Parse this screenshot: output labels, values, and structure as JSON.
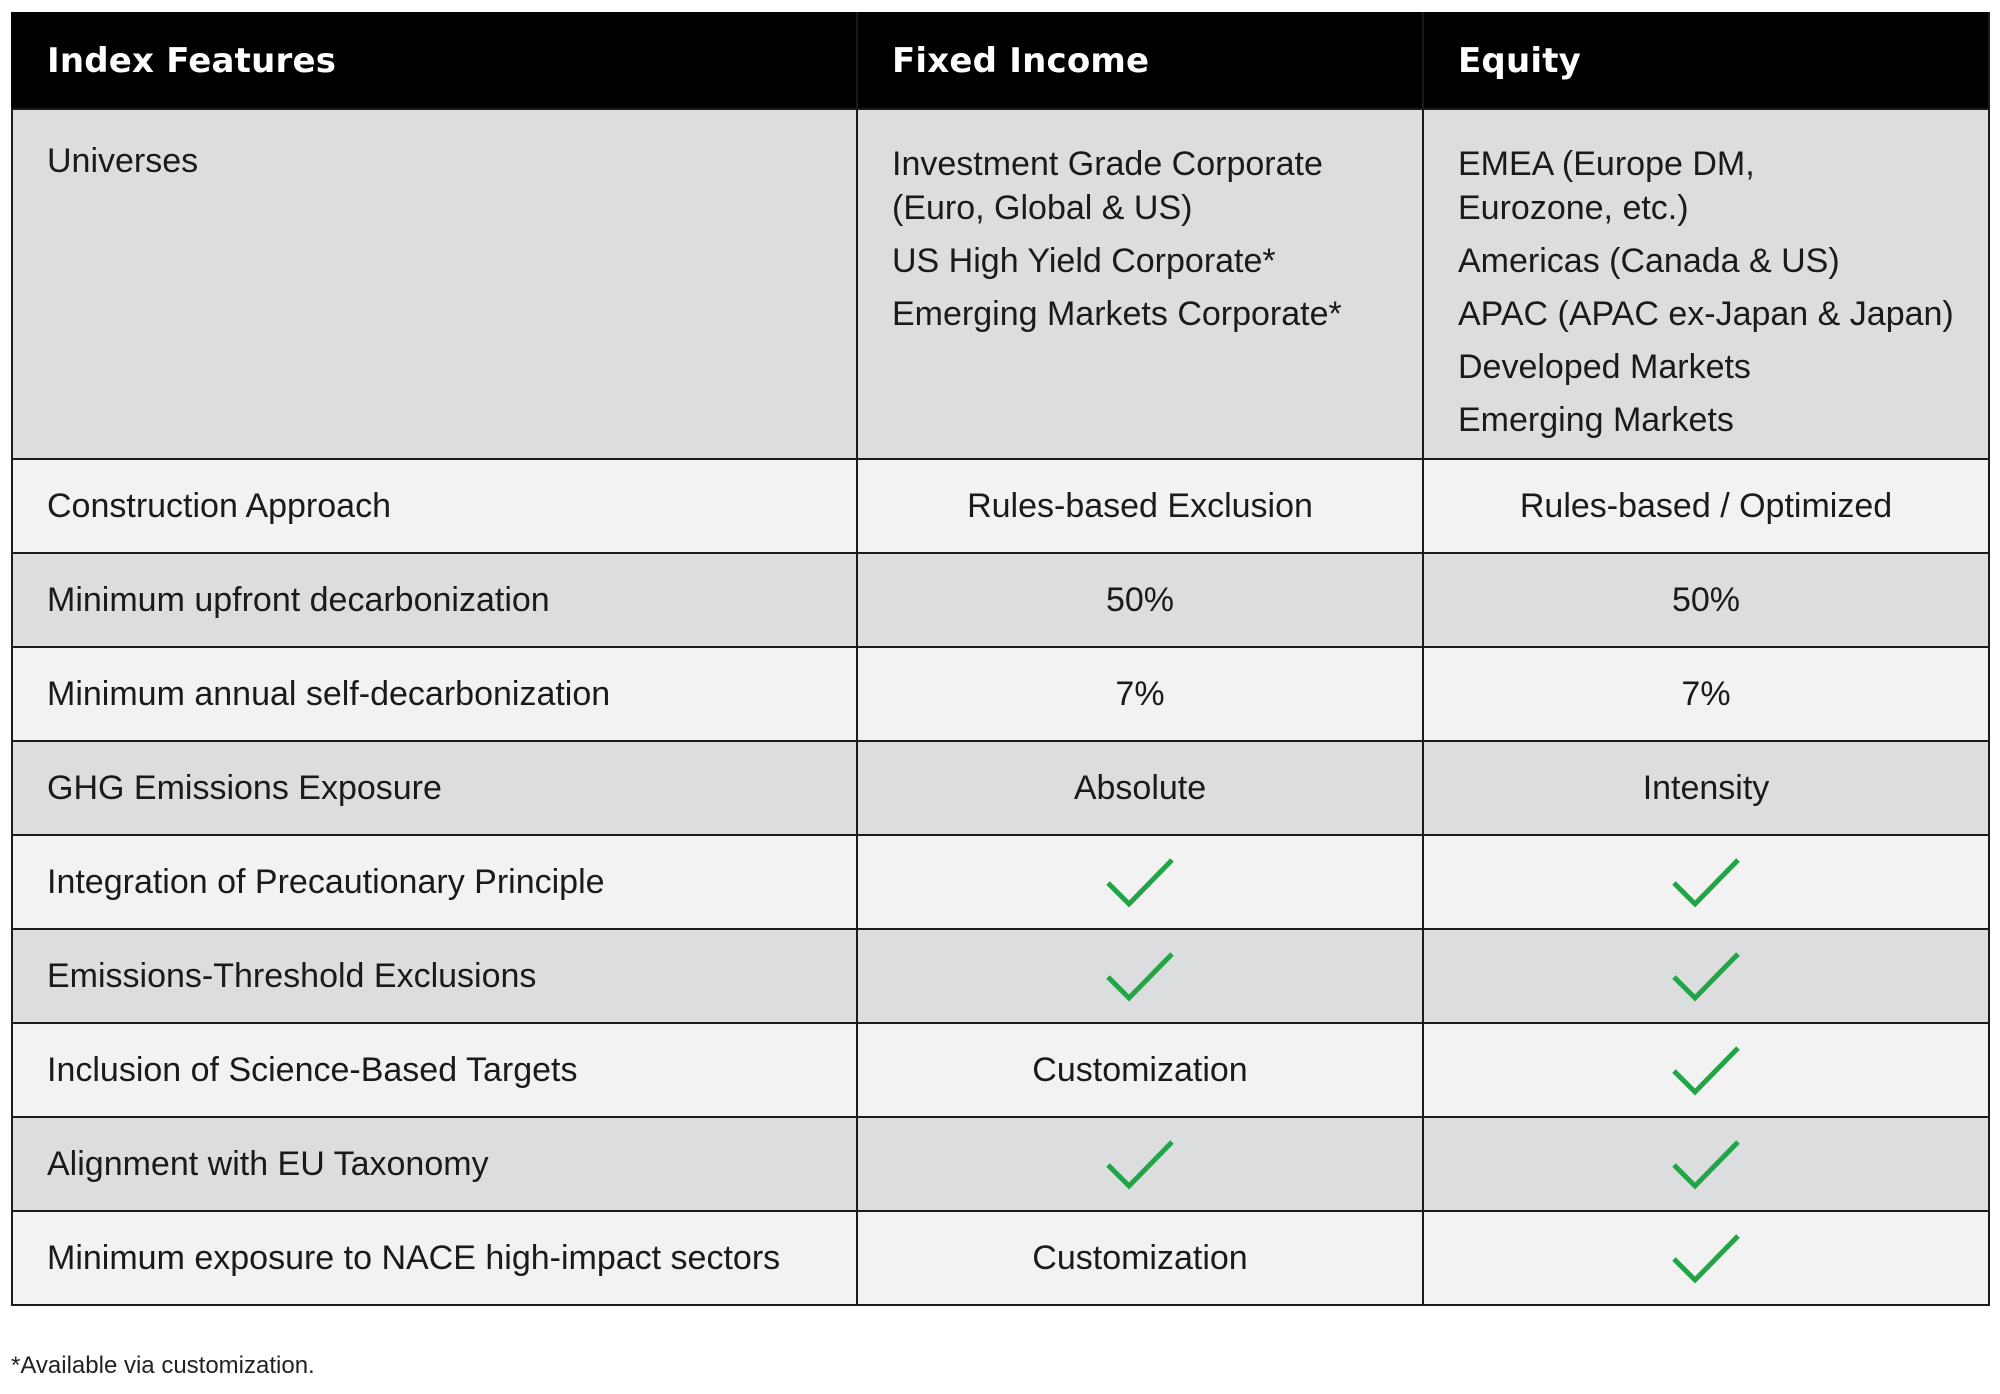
{
  "header": {
    "col1": "Index Features",
    "col2": "Fixed Income",
    "col3": "Equity"
  },
  "universes": {
    "label": "Universes",
    "fixed_income": [
      [
        "Investment Grade Corporate",
        "(Euro, Global & US)"
      ],
      [
        "US High Yield Corporate*"
      ],
      [
        "Emerging Markets Corporate*"
      ]
    ],
    "equity": [
      [
        "EMEA (Europe DM,",
        "Eurozone, etc.)"
      ],
      [
        "Americas (Canada & US)"
      ],
      [
        "APAC (APAC ex-Japan & Japan)"
      ],
      [
        "Developed Markets"
      ],
      [
        "Emerging Markets"
      ]
    ]
  },
  "rows": [
    {
      "label": "Construction Approach",
      "fixed_income": "Rules-based Exclusion",
      "equity": "Rules-based / Optimized",
      "shade": "light"
    },
    {
      "label": "Minimum upfront decarbonization",
      "fixed_income": "50%",
      "equity": "50%",
      "shade": "dark"
    },
    {
      "label": "Minimum annual self-decarbonization",
      "fixed_income": "7%",
      "equity": "7%",
      "shade": "light"
    },
    {
      "label": "GHG Emissions Exposure",
      "fixed_income": "Absolute",
      "equity": "Intensity",
      "shade": "dark"
    },
    {
      "label": "Integration of Precautionary Principle",
      "fixed_income": "check",
      "equity": "check",
      "shade": "light"
    },
    {
      "label": "Emissions-Threshold Exclusions",
      "fixed_income": "check",
      "equity": "check",
      "shade": "dark"
    },
    {
      "label": "Inclusion of Science-Based Targets",
      "fixed_income": "Customization",
      "equity": "check",
      "shade": "light"
    },
    {
      "label": "Alignment with EU Taxonomy",
      "fixed_income": "check",
      "equity": "check",
      "shade": "dark"
    },
    {
      "label": "Minimum exposure to NACE high-impact sectors",
      "fixed_income": "Customization",
      "equity": "check",
      "shade": "light"
    }
  ],
  "icons": {
    "check": "checkmark-icon"
  },
  "colors": {
    "check": "#22a447",
    "header_bg": "#000000",
    "row_dark": "#dcdddf",
    "row_light": "#f1f2f1"
  },
  "footnote": "*Available via customization."
}
